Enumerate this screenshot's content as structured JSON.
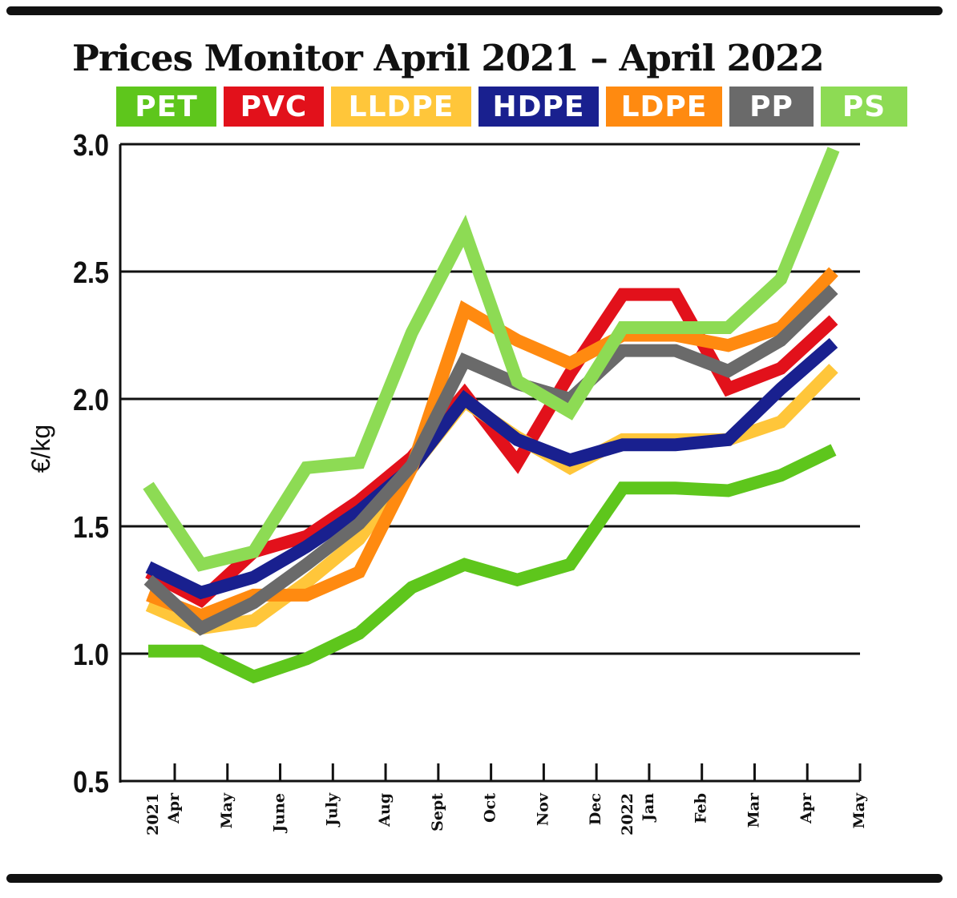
{
  "title": "Prices Monitor April 2021 – April 2022",
  "colors": {
    "PET": "#5ec61c",
    "PVC": "#e2111b",
    "LLDPE": "#ffc63a",
    "HDPE": "#19208f",
    "LDPE": "#ff8a10",
    "PP": "#6a6a6a",
    "PS": "#8ddb54"
  },
  "chart_data": {
    "type": "line",
    "ylabel": "€/kg",
    "ylim": [
      0.5,
      3.0
    ],
    "yticks": [
      "0.5",
      "1.0",
      "1.5",
      "2.0",
      "2.5",
      "3.0"
    ],
    "grid": true,
    "legend_position": "top",
    "x_month_labels": [
      "Apr",
      "May",
      "June",
      "July",
      "Aug",
      "Sept",
      "Oct",
      "Nov",
      "Dec",
      "Jan",
      "Feb",
      "Mar",
      "Apr",
      "May"
    ],
    "x_year_labels": [
      {
        "label": "2021",
        "month_index": 0
      },
      {
        "label": "2022",
        "month_index": 9
      }
    ],
    "series": [
      {
        "name": "PET",
        "values": [
          1.01,
          1.01,
          0.91,
          0.98,
          1.08,
          1.26,
          1.35,
          1.29,
          1.35,
          1.65,
          1.65,
          1.64,
          1.7,
          1.8
        ]
      },
      {
        "name": "PVC",
        "values": [
          1.32,
          1.21,
          1.4,
          1.46,
          1.6,
          1.77,
          2.02,
          1.75,
          2.1,
          2.41,
          2.41,
          2.04,
          2.12,
          2.31
        ]
      },
      {
        "name": "LLDPE",
        "values": [
          1.19,
          1.1,
          1.13,
          1.28,
          1.45,
          1.73,
          1.99,
          1.85,
          1.73,
          1.84,
          1.84,
          1.84,
          1.91,
          2.12
        ]
      },
      {
        "name": "HDPE",
        "values": [
          1.34,
          1.24,
          1.3,
          1.42,
          1.56,
          1.73,
          2.0,
          1.84,
          1.76,
          1.82,
          1.82,
          1.84,
          2.04,
          2.22
        ]
      },
      {
        "name": "LDPE",
        "values": [
          1.23,
          1.15,
          1.23,
          1.23,
          1.32,
          1.73,
          2.35,
          2.23,
          2.14,
          2.25,
          2.25,
          2.21,
          2.28,
          2.5
        ]
      },
      {
        "name": "PP",
        "values": [
          1.29,
          1.1,
          1.2,
          1.35,
          1.51,
          1.74,
          2.15,
          2.06,
          2.0,
          2.19,
          2.19,
          2.11,
          2.23,
          2.43
        ]
      },
      {
        "name": "PS",
        "values": [
          1.66,
          1.35,
          1.4,
          1.73,
          1.75,
          2.26,
          2.66,
          2.07,
          1.95,
          2.28,
          2.28,
          2.28,
          2.47,
          2.98
        ]
      }
    ]
  }
}
